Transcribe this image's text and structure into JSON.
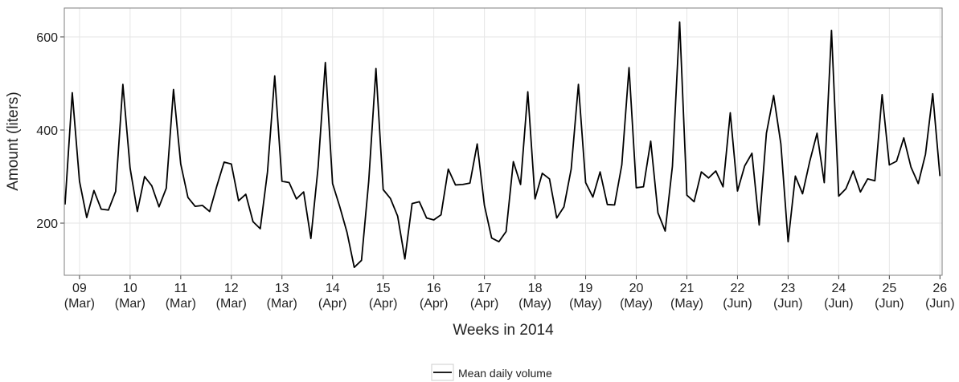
{
  "chart_data": {
    "type": "line",
    "x_label": "Weeks in 2014",
    "y_label": "Amount (liters)",
    "x": [
      -2,
      -1,
      0,
      1,
      2,
      3,
      4,
      5,
      6,
      7,
      8,
      9,
      10,
      11,
      12,
      13,
      14,
      15,
      16,
      17,
      18,
      19,
      20,
      21,
      22,
      23,
      24,
      25,
      26,
      27,
      28,
      29,
      30,
      31,
      32,
      33,
      34,
      35,
      36,
      37,
      38,
      39,
      40,
      41,
      42,
      43,
      44,
      45,
      46,
      47,
      48,
      49,
      50,
      51,
      52,
      53,
      54,
      55,
      56,
      57,
      58,
      59,
      60,
      61,
      62,
      63,
      64,
      65,
      66,
      67,
      68,
      69,
      70,
      71,
      72,
      73,
      74,
      75,
      76,
      77,
      78,
      79,
      80,
      81,
      82,
      83,
      84,
      85,
      86,
      87,
      88,
      89,
      90,
      91,
      92,
      93,
      94,
      95,
      96,
      97,
      98,
      99,
      100,
      101,
      102,
      103,
      104,
      105,
      106,
      107,
      108,
      109,
      110,
      111,
      112,
      113,
      114,
      115,
      116,
      117,
      118,
      119
    ],
    "series": [
      {
        "name": "Mean daily volume",
        "color": "#000000",
        "values": [
          240,
          480,
          290,
          212,
          270,
          230,
          228,
          268,
          498,
          318,
          225,
          300,
          280,
          235,
          275,
          487,
          327,
          255,
          236,
          238,
          225,
          280,
          331,
          327,
          248,
          262,
          203,
          188,
          310,
          516,
          290,
          287,
          252,
          267,
          167,
          320,
          545,
          285,
          235,
          180,
          105,
          120,
          290,
          532,
          272,
          253,
          215,
          123,
          242,
          246,
          211,
          207,
          218,
          316,
          282,
          283,
          286,
          370,
          238,
          168,
          160,
          182,
          332,
          283,
          482,
          252,
          307,
          295,
          211,
          235,
          316,
          498,
          287,
          256,
          310,
          240,
          239,
          325,
          534,
          276,
          278,
          376,
          222,
          183,
          322,
          632,
          260,
          246,
          310,
          297,
          312,
          278,
          437,
          269,
          323,
          350,
          196,
          393,
          474,
          370,
          160,
          301,
          263,
          333,
          393,
          287,
          614,
          258,
          274,
          312,
          267,
          295,
          291,
          476,
          325,
          333,
          383,
          320,
          285,
          348,
          478,
          301
        ]
      }
    ],
    "xlim": [
      -2.1,
      119.3
    ],
    "ylim": [
      88,
      662
    ],
    "yticks": [
      200,
      400,
      600
    ],
    "xticks": [
      {
        "value": 0,
        "label": "09",
        "month": "(Mar)"
      },
      {
        "value": 7,
        "label": "10",
        "month": "(Mar)"
      },
      {
        "value": 14,
        "label": "11",
        "month": "(Mar)"
      },
      {
        "value": 21,
        "label": "12",
        "month": "(Mar)"
      },
      {
        "value": 28,
        "label": "13",
        "month": "(Mar)"
      },
      {
        "value": 35,
        "label": "14",
        "month": "(Apr)"
      },
      {
        "value": 42,
        "label": "15",
        "month": "(Apr)"
      },
      {
        "value": 49,
        "label": "16",
        "month": "(Apr)"
      },
      {
        "value": 56,
        "label": "17",
        "month": "(Apr)"
      },
      {
        "value": 63,
        "label": "18",
        "month": "(May)"
      },
      {
        "value": 70,
        "label": "19",
        "month": "(May)"
      },
      {
        "value": 77,
        "label": "20",
        "month": "(May)"
      },
      {
        "value": 84,
        "label": "21",
        "month": "(May)"
      },
      {
        "value": 91,
        "label": "22",
        "month": "(Jun)"
      },
      {
        "value": 98,
        "label": "23",
        "month": "(Jun)"
      },
      {
        "value": 105,
        "label": "24",
        "month": "(Jun)"
      },
      {
        "value": 112,
        "label": "25",
        "month": "(Jun)"
      },
      {
        "value": 119,
        "label": "26",
        "month": "(Jun)"
      }
    ],
    "grid": true,
    "legend": "bottom"
  }
}
